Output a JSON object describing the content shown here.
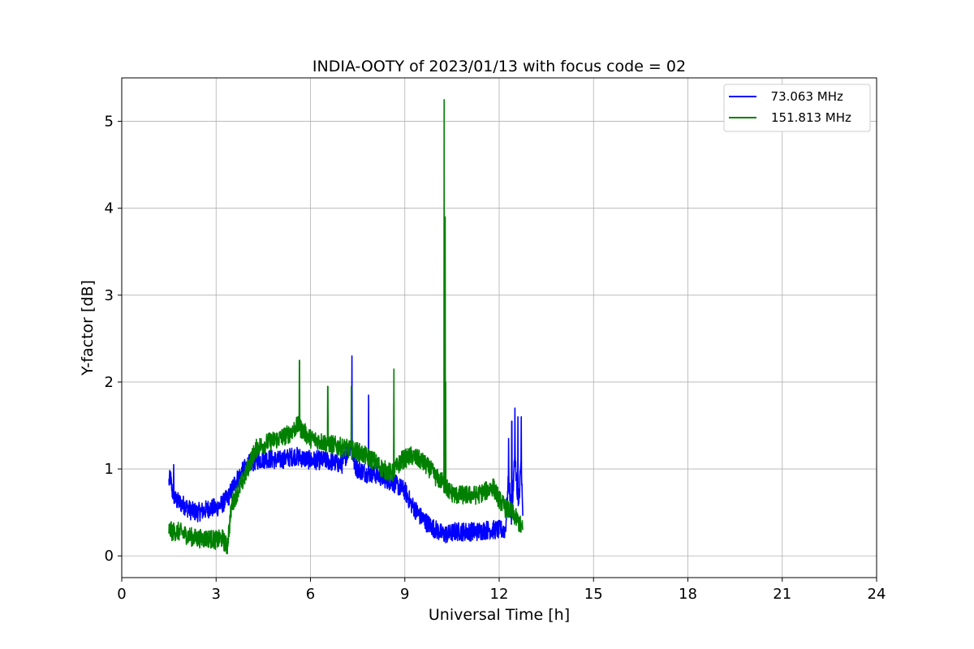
{
  "chart_data": {
    "type": "line",
    "title": "INDIA-OOTY of 2023/01/13 with focus code = 02",
    "xlabel": "Universal Time [h]",
    "ylabel": "Y-factor [dB]",
    "xlim": [
      0,
      24
    ],
    "ylim": [
      -0.25,
      5.5
    ],
    "xticks": [
      "0",
      "3",
      "6",
      "9",
      "12",
      "15",
      "18",
      "21",
      "24"
    ],
    "xtick_values": [
      0,
      3,
      6,
      9,
      12,
      15,
      18,
      21,
      24
    ],
    "yticks": [
      "0",
      "1",
      "2",
      "3",
      "4",
      "5"
    ],
    "ytick_values": [
      0,
      1,
      2,
      3,
      4,
      5
    ],
    "grid": true,
    "legend_position": "top-right",
    "series": [
      {
        "name": "  73.063 MHz",
        "color": "#0000ff",
        "x": [
          1.5,
          1.55,
          1.6,
          1.7,
          1.8,
          2.0,
          2.2,
          2.4,
          2.6,
          2.8,
          3.0,
          3.2,
          3.4,
          3.6,
          3.8,
          4.0,
          4.3,
          4.6,
          5.0,
          5.5,
          6.0,
          6.5,
          7.0,
          7.3,
          7.4,
          7.5,
          7.8,
          8.0,
          8.3,
          8.6,
          8.8,
          9.0,
          9.2,
          9.5,
          9.8,
          10.0,
          10.2,
          10.4,
          10.6,
          10.8,
          11.0,
          11.3,
          11.6,
          12.0,
          12.2,
          12.3,
          12.4,
          12.5,
          12.6,
          12.7,
          12.75
        ],
        "y": [
          0.85,
          0.9,
          0.75,
          0.65,
          0.62,
          0.58,
          0.52,
          0.5,
          0.52,
          0.55,
          0.55,
          0.6,
          0.68,
          0.85,
          0.95,
          1.05,
          1.1,
          1.12,
          1.1,
          1.15,
          1.1,
          1.1,
          1.05,
          1.3,
          1.05,
          1.0,
          0.95,
          0.95,
          0.9,
          0.85,
          0.8,
          0.75,
          0.6,
          0.45,
          0.35,
          0.3,
          0.25,
          0.25,
          0.28,
          0.28,
          0.28,
          0.28,
          0.3,
          0.3,
          0.3,
          0.9,
          0.4,
          1.2,
          0.5,
          1.1,
          0.4
        ],
        "spikes": [
          [
            1.65,
            1.05
          ],
          [
            7.32,
            2.3
          ],
          [
            7.85,
            1.85
          ],
          [
            12.3,
            1.35
          ],
          [
            12.4,
            1.55
          ],
          [
            12.5,
            1.7
          ],
          [
            12.6,
            1.6
          ],
          [
            12.7,
            1.6
          ]
        ]
      },
      {
        "name": "151.813 MHz",
        "color": "#008000",
        "x": [
          1.5,
          1.6,
          1.8,
          2.0,
          2.2,
          2.4,
          2.6,
          2.8,
          3.0,
          3.2,
          3.35,
          3.5,
          3.7,
          3.9,
          4.1,
          4.3,
          4.6,
          5.0,
          5.3,
          5.6,
          6.0,
          6.5,
          7.0,
          7.5,
          8.0,
          8.3,
          8.6,
          8.9,
          9.2,
          9.5,
          9.8,
          10.0,
          10.2,
          10.4,
          10.6,
          10.8,
          11.0,
          11.3,
          11.6,
          11.8,
          12.0,
          12.2,
          12.4,
          12.6,
          12.75
        ],
        "y": [
          0.3,
          0.28,
          0.28,
          0.25,
          0.22,
          0.2,
          0.2,
          0.2,
          0.18,
          0.2,
          0.1,
          0.6,
          0.75,
          0.9,
          1.1,
          1.25,
          1.3,
          1.35,
          1.4,
          1.5,
          1.35,
          1.3,
          1.25,
          1.2,
          1.1,
          1.0,
          0.95,
          1.1,
          1.15,
          1.1,
          1.0,
          0.9,
          0.85,
          0.75,
          0.7,
          0.7,
          0.7,
          0.7,
          0.75,
          0.8,
          0.65,
          0.55,
          0.5,
          0.4,
          0.3
        ],
        "spikes": [
          [
            5.65,
            2.25
          ],
          [
            6.55,
            1.95
          ],
          [
            7.3,
            1.95
          ],
          [
            8.65,
            2.15
          ],
          [
            10.25,
            5.25
          ],
          [
            10.28,
            3.9
          ],
          [
            10.3,
            2.0
          ]
        ]
      }
    ]
  }
}
